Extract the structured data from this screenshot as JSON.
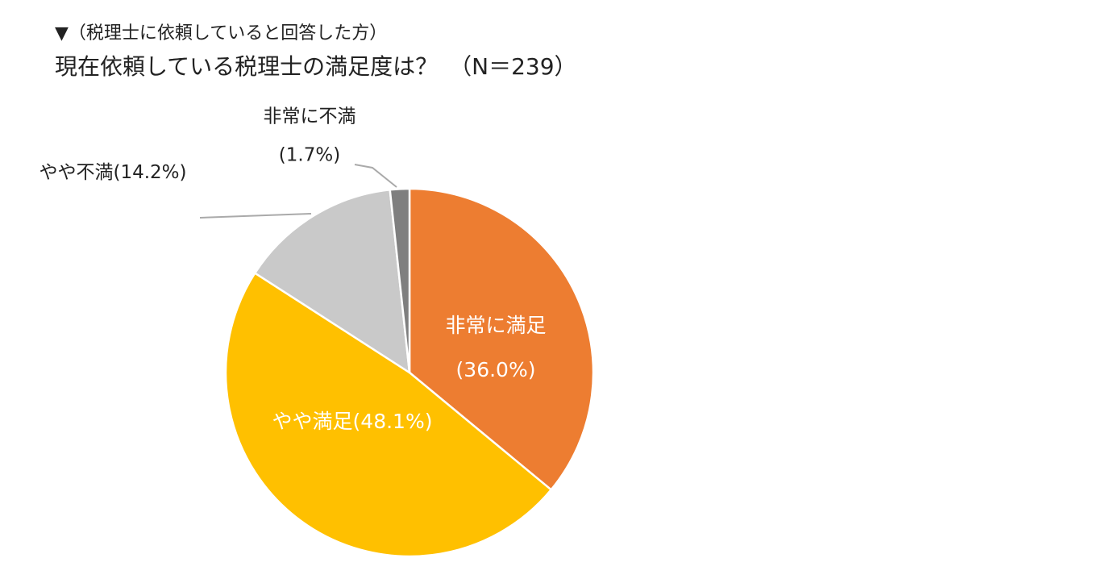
{
  "chart_data": {
    "type": "pie",
    "subtitle": "▼（税理士に依頼していると回答した方）",
    "title": "現在依頼している税理士の満足度は？　（N＝239）",
    "categories": [
      "非常に満足",
      "やや満足",
      "やや不満",
      "非常に不満"
    ],
    "values": [
      36.0,
      48.1,
      14.2,
      1.7
    ],
    "value_labels": [
      "(36.0%)",
      "(48.1%)",
      "(14.2%)",
      "(1.7%)"
    ],
    "colors": [
      "#ED7D31",
      "#FFC000",
      "#C9C9C9",
      "#7F7F7F"
    ]
  }
}
